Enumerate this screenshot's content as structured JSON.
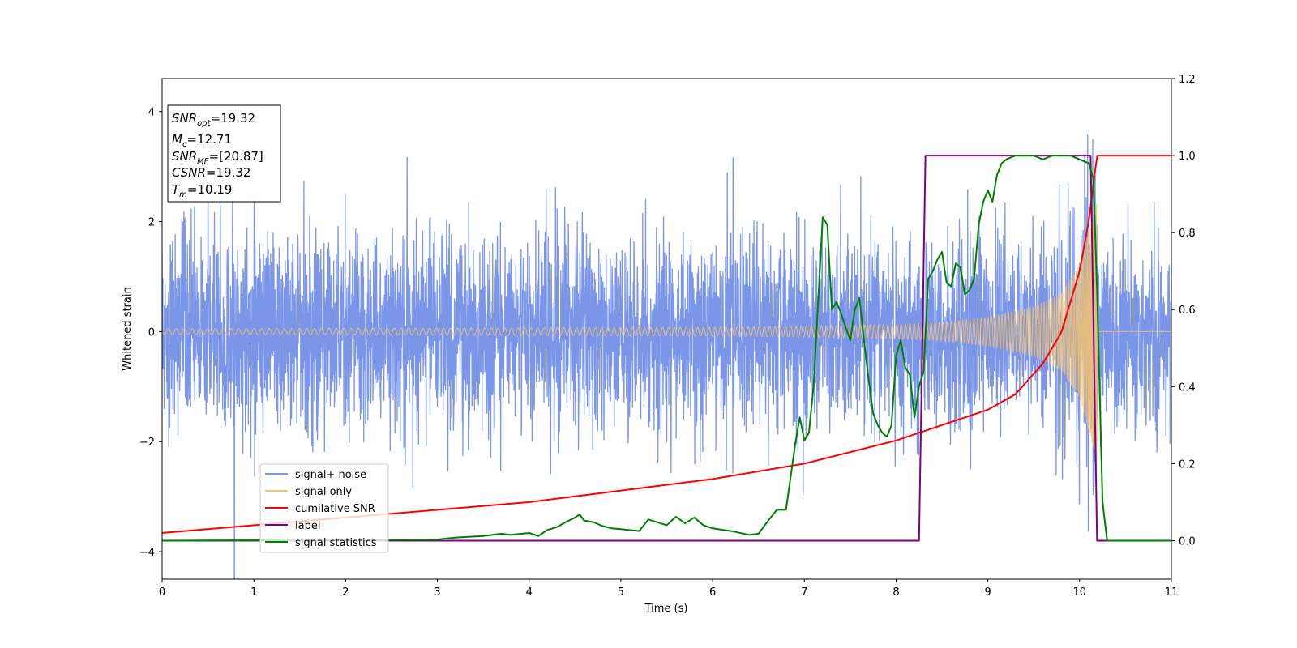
{
  "chart_data": {
    "type": "line",
    "xlabel": "Time (s)",
    "ylabel": "Whitened strain",
    "xlim": [
      0,
      11
    ],
    "ylim": [
      -4.5,
      4.6
    ],
    "y2lim": [
      -0.1,
      1.2
    ],
    "x_ticks": [
      "0",
      "1",
      "2",
      "3",
      "4",
      "5",
      "6",
      "7",
      "8",
      "9",
      "10",
      "11"
    ],
    "y_ticks": [
      "−4",
      "−2",
      "0",
      "2",
      "4"
    ],
    "y2_ticks": [
      "0.0",
      "0.2",
      "0.4",
      "0.6",
      "0.8",
      "1.0",
      "1.2"
    ],
    "legend_position": "lower-left",
    "grid": false,
    "annotation": {
      "snr_opt": {
        "main": "SNR",
        "sub": "opt",
        "value": "=19.32"
      },
      "mc": {
        "main": "M",
        "sub": "c",
        "value": "=12.71"
      },
      "snr_mf": {
        "main": "SNR",
        "sub": "MF",
        "value": "=[20.87]"
      },
      "csnr": {
        "main": "CSNR",
        "value": "=19.32"
      },
      "tm": {
        "main": "T",
        "sub": "m",
        "value": "=10.19"
      }
    },
    "series": [
      {
        "name": "signal+ noise",
        "color": "#7b96e8",
        "axis": "left",
        "description": "noise std ~0.9 plus signal"
      },
      {
        "name": "signal only",
        "color": "#f7c36a",
        "axis": "left",
        "chirp_envelope": {
          "t": [
            0,
            2,
            4,
            6,
            7,
            8,
            8.5,
            9,
            9.5,
            9.8,
            10,
            10.1,
            10.19
          ],
          "amp": [
            0.05,
            0.06,
            0.07,
            0.08,
            0.1,
            0.13,
            0.17,
            0.26,
            0.45,
            0.7,
            1.2,
            1.8,
            2.4
          ]
        },
        "merger_time": 10.19
      },
      {
        "name": "cumilative SNR",
        "color": "#ff0000",
        "axis": "right",
        "x": [
          0,
          1,
          2,
          3,
          4,
          5,
          6,
          7,
          7.5,
          8,
          8.5,
          9,
          9.3,
          9.6,
          9.8,
          10.0,
          10.1,
          10.19,
          10.2,
          11
        ],
        "y": [
          0.02,
          0.04,
          0.06,
          0.08,
          0.1,
          0.13,
          0.16,
          0.2,
          0.23,
          0.26,
          0.3,
          0.34,
          0.38,
          0.46,
          0.54,
          0.7,
          0.83,
          1.0,
          1.0,
          1.0
        ]
      },
      {
        "name": "label",
        "color": "#800080",
        "axis": "right",
        "x": [
          0,
          8.25,
          8.32,
          10.12,
          10.19,
          11
        ],
        "y": [
          0,
          0,
          1,
          1,
          0,
          0
        ]
      },
      {
        "name": "signal statistics",
        "color": "#008000",
        "axis": "right",
        "x": [
          0,
          3.0,
          3.2,
          3.5,
          3.7,
          3.8,
          4.0,
          4.1,
          4.2,
          4.3,
          4.4,
          4.5,
          4.55,
          4.6,
          4.7,
          4.8,
          4.9,
          5.0,
          5.2,
          5.3,
          5.5,
          5.6,
          5.7,
          5.8,
          5.9,
          6.0,
          6.2,
          6.4,
          6.5,
          6.6,
          6.7,
          6.8,
          6.9,
          6.95,
          7.0,
          7.05,
          7.1,
          7.2,
          7.25,
          7.3,
          7.35,
          7.4,
          7.5,
          7.55,
          7.6,
          7.65,
          7.7,
          7.75,
          7.8,
          7.85,
          7.9,
          7.95,
          8.0,
          8.05,
          8.1,
          8.15,
          8.2,
          8.25,
          8.3,
          8.35,
          8.4,
          8.45,
          8.5,
          8.55,
          8.6,
          8.65,
          8.7,
          8.75,
          8.8,
          8.85,
          8.9,
          8.95,
          9.0,
          9.05,
          9.1,
          9.15,
          9.2,
          9.3,
          9.5,
          9.6,
          9.7,
          9.9,
          10.0,
          10.1,
          10.15,
          10.19,
          10.25,
          10.3,
          11
        ],
        "y": [
          0,
          0.003,
          0.008,
          0.012,
          0.018,
          0.015,
          0.02,
          0.012,
          0.028,
          0.035,
          0.048,
          0.06,
          0.068,
          0.052,
          0.048,
          0.038,
          0.032,
          0.03,
          0.025,
          0.055,
          0.04,
          0.062,
          0.045,
          0.06,
          0.04,
          0.032,
          0.025,
          0.015,
          0.018,
          0.05,
          0.08,
          0.08,
          0.25,
          0.32,
          0.26,
          0.28,
          0.4,
          0.84,
          0.82,
          0.6,
          0.62,
          0.59,
          0.52,
          0.6,
          0.63,
          0.52,
          0.42,
          0.33,
          0.3,
          0.28,
          0.27,
          0.3,
          0.48,
          0.52,
          0.45,
          0.43,
          0.32,
          0.4,
          0.44,
          0.68,
          0.7,
          0.73,
          0.75,
          0.67,
          0.66,
          0.72,
          0.71,
          0.64,
          0.65,
          0.68,
          0.82,
          0.88,
          0.91,
          0.88,
          0.95,
          0.98,
          0.99,
          1.0,
          1.0,
          0.99,
          1.0,
          1.0,
          0.99,
          0.98,
          0.94,
          0.65,
          0.1,
          0.0,
          0.0
        ]
      }
    ]
  }
}
